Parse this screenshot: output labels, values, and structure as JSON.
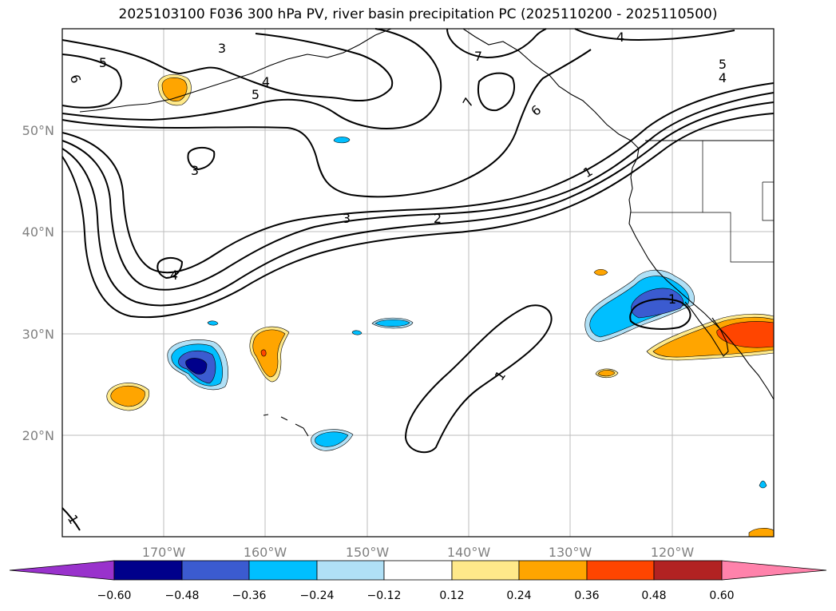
{
  "title": "2025103100 F036 300 hPa PV, river basin precipitation PC (2025110200 - 2025110500)",
  "latitude_labels": [
    "50°N",
    "40°N",
    "30°N",
    "20°N"
  ],
  "longitude_labels": [
    "170°W",
    "160°W",
    "150°W",
    "140°W",
    "130°W",
    "120°W"
  ],
  "contour_labels": [
    "5",
    "3",
    "4",
    "5",
    "7",
    "4",
    "5",
    "4",
    "6",
    "7",
    "6",
    "3",
    "1",
    "3",
    "2",
    "4",
    "1",
    "1",
    "1"
  ],
  "colorbar": {
    "ticks": [
      "−0.60",
      "−0.48",
      "−0.36",
      "−0.24",
      "−0.12",
      "0.12",
      "0.24",
      "0.36",
      "0.48",
      "0.60"
    ],
    "colors": [
      "#9932cc",
      "#00008b",
      "#3b5bd0",
      "#00bfff",
      "#b0e0f6",
      "#ffffff",
      "#ffe98a",
      "#ffa500",
      "#ff4500",
      "#b22222",
      "#ff82ab"
    ]
  },
  "shading_colors": {
    "blue_light": "#b0e0f6",
    "blue": "#00bfff",
    "blue_mid": "#3b5bd0",
    "blue_dark": "#00008b",
    "yellow": "#ffe98a",
    "orange": "#ffa500",
    "red_orange": "#ff4500"
  }
}
